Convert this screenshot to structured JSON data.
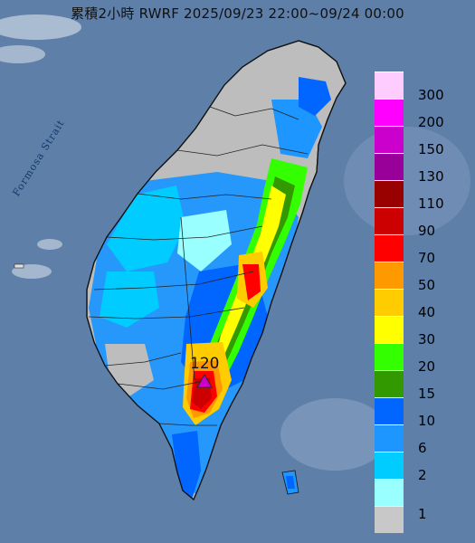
{
  "title": "累積2小時 RWRF 2025/09/23 22:00~09/24 00:00",
  "map_labels": {
    "strait": "Formosa Strait",
    "peak_value": "120"
  },
  "legend": {
    "items": [
      {
        "label": "300",
        "color": "#ffccff"
      },
      {
        "label": "200",
        "color": "#ff00ff"
      },
      {
        "label": "150",
        "color": "#cc00cc"
      },
      {
        "label": "130",
        "color": "#990099"
      },
      {
        "label": "110",
        "color": "#990000"
      },
      {
        "label": "90",
        "color": "#cc0000"
      },
      {
        "label": "70",
        "color": "#ff0000"
      },
      {
        "label": "50",
        "color": "#ff9900"
      },
      {
        "label": "40",
        "color": "#ffcc00"
      },
      {
        "label": "30",
        "color": "#ffff00"
      },
      {
        "label": "20",
        "color": "#33ff00"
      },
      {
        "label": "15",
        "color": "#339900"
      },
      {
        "label": "10",
        "color": "#0066ff"
      },
      {
        "label": "6",
        "color": "#1e96ff"
      },
      {
        "label": "2",
        "color": "#00ccff"
      },
      {
        "label": "1",
        "color": "#99ffff"
      },
      {
        "label": "",
        "color": "#c8c8c8"
      }
    ]
  }
}
